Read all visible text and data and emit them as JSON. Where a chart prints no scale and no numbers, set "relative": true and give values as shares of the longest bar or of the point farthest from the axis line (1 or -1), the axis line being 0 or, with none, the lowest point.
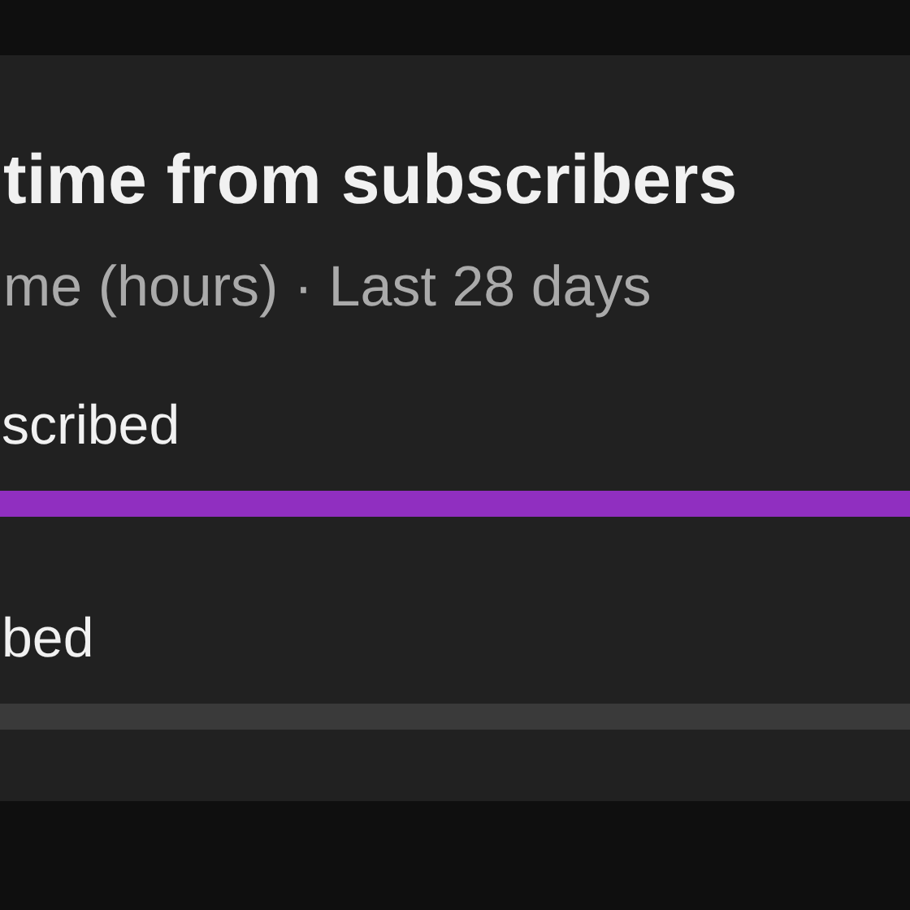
{
  "chart_data": {
    "type": "bar",
    "orientation": "horizontal",
    "relative": true,
    "title": "time from subscribers",
    "subtitle": "me (hours) · Last 28 days",
    "categories": [
      "scribed",
      "bed"
    ],
    "values": [
      1,
      1
    ],
    "colors": [
      "#902fc0",
      "#3a3a3a"
    ]
  }
}
